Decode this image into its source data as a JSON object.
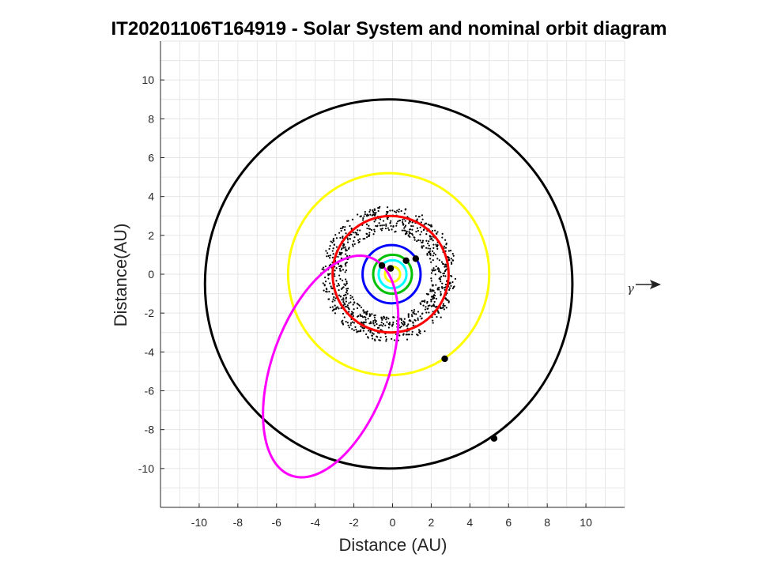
{
  "chart_data": {
    "type": "scatter",
    "title": "IT20201106T164919 - Solar System and nominal orbit diagram",
    "xlabel": "Distance (AU)",
    "ylabel": "Distance(AU)",
    "xlim": [
      -12,
      12
    ],
    "ylim": [
      -12,
      12
    ],
    "xticks": [
      -10,
      -8,
      -6,
      -4,
      -2,
      0,
      2,
      4,
      6,
      8,
      10
    ],
    "yticks": [
      -10,
      -8,
      -6,
      -4,
      -2,
      0,
      2,
      4,
      6,
      8,
      10
    ],
    "grid": true,
    "vernal_equinox_label": "γ",
    "colors": {
      "mercury": "#ffff00",
      "venus": "#00ffff",
      "earth": "#00c000",
      "mars": "#0000ff",
      "planet5": "#ff0000",
      "jupiter": "#ffff00",
      "saturn": "#000000",
      "object_orbit": "#ff00ff",
      "asteroids": "#000000",
      "markers": "#000000"
    },
    "orbits": [
      {
        "color_key": "mercury",
        "cx": 0.0,
        "cy": 0.0,
        "rx": 0.39,
        "ry": 0.39,
        "angle": 0
      },
      {
        "color_key": "venus",
        "cx": 0.0,
        "cy": 0.0,
        "rx": 0.72,
        "ry": 0.72,
        "angle": 0
      },
      {
        "color_key": "earth",
        "cx": 0.0,
        "cy": 0.0,
        "rx": 1.0,
        "ry": 1.0,
        "angle": 0
      },
      {
        "color_key": "mars",
        "cx": -0.05,
        "cy": 0.0,
        "rx": 1.5,
        "ry": 1.5,
        "angle": 0
      },
      {
        "color_key": "planet5",
        "cx": -0.1,
        "cy": 0.0,
        "rx": 3.0,
        "ry": 3.0,
        "angle": 0
      },
      {
        "color_key": "jupiter",
        "cx": -0.2,
        "cy": 0.0,
        "rx": 5.2,
        "ry": 5.2,
        "angle": 0
      },
      {
        "color_key": "saturn",
        "cx": -0.2,
        "cy": -0.5,
        "rx": 9.5,
        "ry": 9.5,
        "angle": 0
      },
      {
        "color_key": "object_orbit",
        "cx": -3.2,
        "cy": -4.75,
        "rx": 6.0,
        "ry": 3.0,
        "angle": 70
      }
    ],
    "asteroid_belt": {
      "inner_radius": 2.2,
      "outer_radius": 3.5,
      "count": 900,
      "cx": -0.2,
      "cy": 0.0
    },
    "positions": [
      {
        "x": -0.1,
        "y": 0.3
      },
      {
        "x": -0.55,
        "y": 0.45
      },
      {
        "x": 0.7,
        "y": 0.7
      },
      {
        "x": 1.2,
        "y": 0.8
      },
      {
        "x": 2.7,
        "y": -4.35
      },
      {
        "x": 5.25,
        "y": -8.45
      }
    ]
  }
}
